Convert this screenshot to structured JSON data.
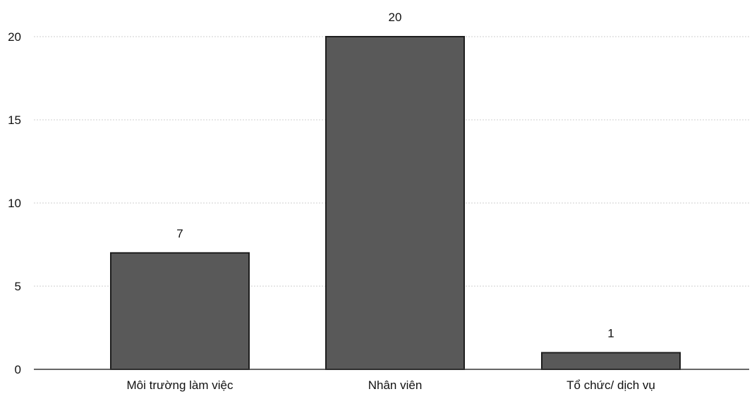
{
  "chart_data": {
    "type": "bar",
    "categories": [
      "Môi trường làm việc",
      "Nhân viên",
      "Tổ chức/ dịch vụ"
    ],
    "values": [
      7,
      20,
      1
    ],
    "data_labels": [
      "7",
      "20",
      "1"
    ],
    "title": "",
    "xlabel": "",
    "ylabel": "",
    "ylim": [
      0,
      20
    ],
    "yticks": [
      0,
      5,
      10,
      15,
      20
    ],
    "ytick_labels": [
      "0",
      "5",
      "10",
      "15",
      "20"
    ],
    "grid": true,
    "legend": "none",
    "colors": {
      "bar_fill": "#595959",
      "bar_stroke": "#1e1e1e",
      "grid": "#cfcfcf",
      "axis": "#333333",
      "text": "#111111"
    }
  }
}
